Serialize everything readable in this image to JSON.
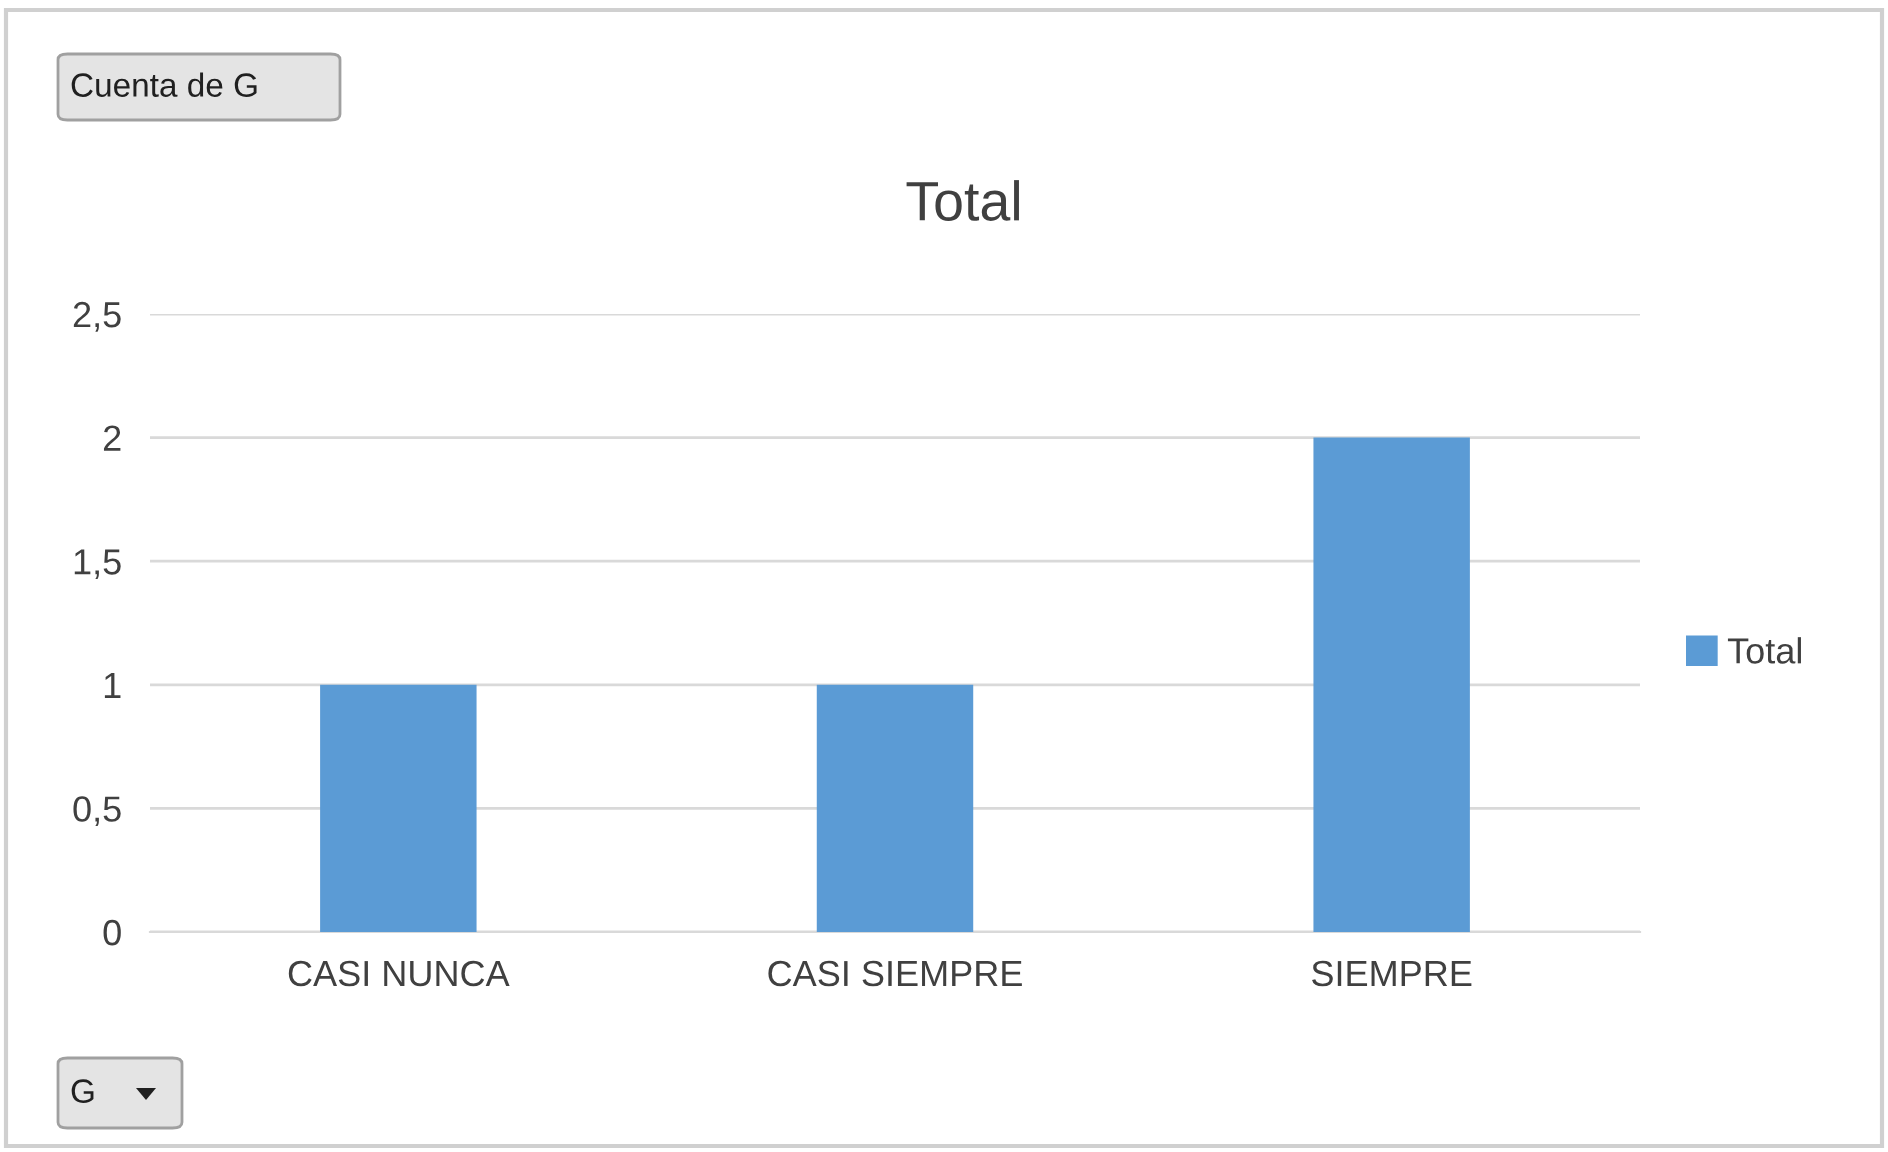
{
  "chart_data": {
    "type": "bar",
    "title": "Total",
    "categories": [
      "CASI NUNCA",
      "CASI SIEMPRE",
      "SIEMPRE"
    ],
    "series": [
      {
        "name": "Total",
        "color": "#5b9bd5",
        "values": [
          1,
          1,
          2
        ]
      }
    ],
    "ylim": [
      0,
      2.5
    ],
    "yticks": [
      0,
      {
        "value": 0.5,
        "label": "0,5"
      },
      1,
      {
        "value": 1.5,
        "label": "1,5"
      },
      2,
      {
        "value": 2.5,
        "label": "2,5"
      }
    ],
    "grid": "y",
    "legend": "right",
    "annotations": [
      "Cuenta de G",
      "G"
    ]
  }
}
